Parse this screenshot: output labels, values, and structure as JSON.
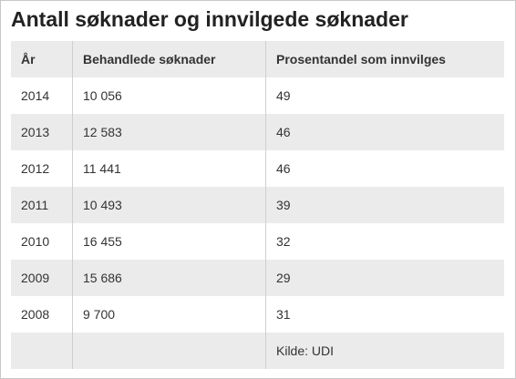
{
  "title": "Antall søknader og innvilgede søknader",
  "columns": [
    "År",
    "Behandlede søknader",
    "Prosentandel som innvilges"
  ],
  "rows": [
    {
      "year": "2014",
      "processed": "10 056",
      "percent_granted": "49"
    },
    {
      "year": "2013",
      "processed": "12 583",
      "percent_granted": "46"
    },
    {
      "year": "2012",
      "processed": "11 441",
      "percent_granted": "46"
    },
    {
      "year": "2011",
      "processed": "10 493",
      "percent_granted": "39"
    },
    {
      "year": "2010",
      "processed": "16 455",
      "percent_granted": "32"
    },
    {
      "year": "2009",
      "processed": "15 686",
      "percent_granted": "29"
    },
    {
      "year": "2008",
      "processed": "9 700",
      "percent_granted": "31"
    }
  ],
  "source": "Kilde: UDI",
  "colors": {
    "title": "#222222",
    "text": "#333333",
    "stripe": "#ebebeb",
    "divider": "#cfcfcf",
    "border": "#c8c8c8"
  }
}
